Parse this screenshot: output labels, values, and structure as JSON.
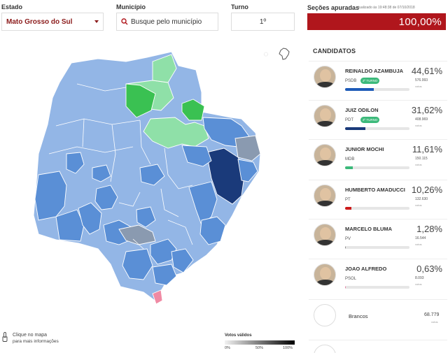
{
  "filters": {
    "estado_label": "Estado",
    "estado_value": "Mato Grosso do Sul",
    "municipio_label": "Município",
    "municipio_placeholder": "Busque pelo município",
    "turno_label": "Turno",
    "turno_value": "1º"
  },
  "secoes": {
    "title": "Seções apuradas",
    "updated": "atualizado às 19:48:38 de 07/10/2018",
    "percent": "100,00%"
  },
  "candidates_title": "CANDIDATOS",
  "candidates": [
    {
      "name": "REINALDO AZAMBUJA",
      "party": "PSDB",
      "badge": "2º TURNO",
      "pct": "44,61%",
      "votes": "576.993",
      "votes_label": "votos",
      "bar_fraction": 0.4461,
      "bar_color": "#1e5bb8"
    },
    {
      "name": "JUIZ ODILON",
      "party": "PDT",
      "badge": "2º TURNO",
      "pct": "31,62%",
      "votes": "408.969",
      "votes_label": "votos",
      "bar_fraction": 0.3162,
      "bar_color": "#1a3a7a"
    },
    {
      "name": "JUNIOR MOCHI",
      "party": "MDB",
      "badge": "",
      "pct": "11,61%",
      "votes": "150.115",
      "votes_label": "votos",
      "bar_fraction": 0.1161,
      "bar_color": "#3cb97a"
    },
    {
      "name": "HUMBERTO AMADUCCI",
      "party": "PT",
      "badge": "",
      "pct": "10,26%",
      "votes": "132.630",
      "votes_label": "votos",
      "bar_fraction": 0.1026,
      "bar_color": "#cc1b1b"
    },
    {
      "name": "MARCELO BLUMA",
      "party": "PV",
      "badge": "",
      "pct": "1,28%",
      "votes": "16.544",
      "votes_label": "votos",
      "bar_fraction": 0.0128,
      "bar_color": "#888888"
    },
    {
      "name": "JOAO ALFREDO",
      "party": "PSOL",
      "badge": "",
      "pct": "0,63%",
      "votes": "8.093",
      "votes_label": "votos",
      "bar_fraction": 0.0063,
      "bar_color": "#e57fa2"
    }
  ],
  "brancos": {
    "label": "Brancos",
    "votes": "68.779",
    "votes_label": "votos"
  },
  "map_hint": {
    "line1": "Clique no mapa",
    "line2": "para mais informações"
  },
  "legend": {
    "title": "Votos válidos",
    "min": "0%",
    "mid": "50%",
    "max": "100%"
  },
  "colors": {
    "psdb_light": "#93b6e6",
    "psdb_mid": "#5a8fd6",
    "psdb_dark": "#1e5bb8",
    "pdt": "#1a3a7a",
    "mdb_light": "#8fe0a8",
    "mdb": "#3ac152",
    "pt": "#8a9ab0",
    "psol": "#f08aa4",
    "brand_red": "#b0161c"
  }
}
